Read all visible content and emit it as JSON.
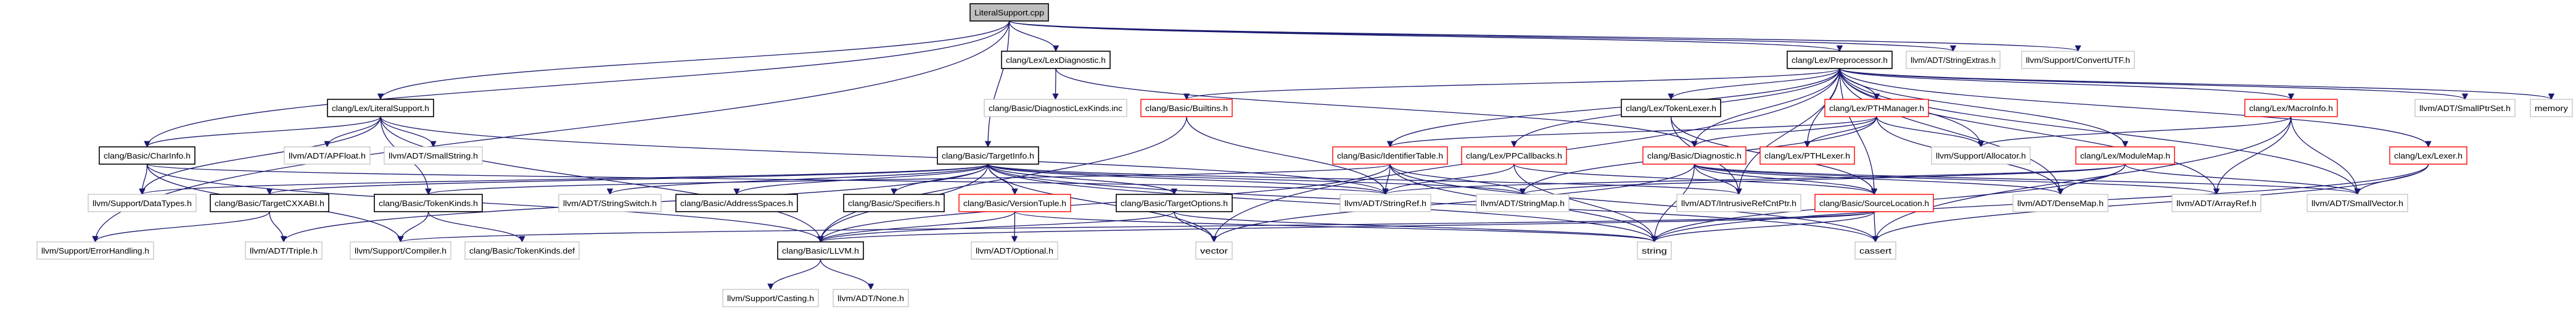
{
  "graph": {
    "colors": {
      "edge": "#191970",
      "root_fill": "#bfbfbf",
      "documented_border": "#000000",
      "undocumented_border": "#bfbfbf",
      "truncated_border": "#ff0000"
    },
    "nodes": [
      {
        "id": "cpp",
        "label": "LiteralSupport.cpp",
        "style": "root"
      },
      {
        "id": "litsup",
        "label": "clang/Lex/LiteralSupport.h",
        "style": "black"
      },
      {
        "id": "charinfo",
        "label": "clang/Basic/CharInfo.h",
        "style": "black"
      },
      {
        "id": "apfloat",
        "label": "llvm/ADT/APFloat.h",
        "style": "gray"
      },
      {
        "id": "smallstring",
        "label": "llvm/ADT/SmallString.h",
        "style": "gray"
      },
      {
        "id": "datatypes",
        "label": "llvm/Support/DataTypes.h",
        "style": "gray"
      },
      {
        "id": "cxxabi",
        "label": "clang/Basic/TargetCXXABI.h",
        "style": "black"
      },
      {
        "id": "tokenkinds",
        "label": "clang/Basic/TokenKinds.h",
        "style": "black"
      },
      {
        "id": "stringswitch",
        "label": "llvm/ADT/StringSwitch.h",
        "style": "gray"
      },
      {
        "id": "errorhandling",
        "label": "llvm/Support/ErrorHandling.h",
        "style": "gray"
      },
      {
        "id": "triple",
        "label": "llvm/ADT/Triple.h",
        "style": "gray"
      },
      {
        "id": "compiler",
        "label": "llvm/Support/Compiler.h",
        "style": "gray"
      },
      {
        "id": "tokenkindsdef",
        "label": "clang/Basic/TokenKinds.def",
        "style": "gray"
      },
      {
        "id": "lexdiag",
        "label": "clang/Lex/LexDiagnostic.h",
        "style": "black"
      },
      {
        "id": "diaglexkinds",
        "label": "clang/Basic/DiagnosticLexKinds.inc",
        "style": "gray"
      },
      {
        "id": "builtins",
        "label": "clang/Basic/Builtins.h",
        "style": "red"
      },
      {
        "id": "targetinfo",
        "label": "clang/Basic/TargetInfo.h",
        "style": "black"
      },
      {
        "id": "addrspaces",
        "label": "clang/Basic/AddressSpaces.h",
        "style": "black"
      },
      {
        "id": "specifiers",
        "label": "clang/Basic/Specifiers.h",
        "style": "black"
      },
      {
        "id": "versiontuple",
        "label": "clang/Basic/VersionTuple.h",
        "style": "red"
      },
      {
        "id": "targetoptions",
        "label": "clang/Basic/TargetOptions.h",
        "style": "black"
      },
      {
        "id": "llvmh",
        "label": "clang/Basic/LLVM.h",
        "style": "black"
      },
      {
        "id": "optional",
        "label": "llvm/ADT/Optional.h",
        "style": "gray"
      },
      {
        "id": "vector",
        "label": "vector",
        "style": "gray"
      },
      {
        "id": "casting",
        "label": "llvm/Support/Casting.h",
        "style": "gray"
      },
      {
        "id": "none",
        "label": "llvm/ADT/None.h",
        "style": "gray"
      },
      {
        "id": "preprocessor",
        "label": "clang/Lex/Preprocessor.h",
        "style": "black"
      },
      {
        "id": "stringextras",
        "label": "llvm/ADT/StringExtras.h",
        "style": "gray"
      },
      {
        "id": "convertutf",
        "label": "llvm/Support/ConvertUTF.h",
        "style": "gray"
      },
      {
        "id": "tokenlexer",
        "label": "clang/Lex/TokenLexer.h",
        "style": "black"
      },
      {
        "id": "pthmanager",
        "label": "clang/Lex/PTHManager.h",
        "style": "red"
      },
      {
        "id": "macroinfo",
        "label": "clang/Lex/MacroInfo.h",
        "style": "red"
      },
      {
        "id": "smallptrset",
        "label": "llvm/ADT/SmallPtrSet.h",
        "style": "gray"
      },
      {
        "id": "memory",
        "label": "memory",
        "style": "gray"
      },
      {
        "id": "identtable",
        "label": "clang/Basic/IdentifierTable.h",
        "style": "red"
      },
      {
        "id": "ppcallbacks",
        "label": "clang/Lex/PPCallbacks.h",
        "style": "red"
      },
      {
        "id": "diagnostic",
        "label": "clang/Basic/Diagnostic.h",
        "style": "red"
      },
      {
        "id": "pthlexer",
        "label": "clang/Lex/PTHLexer.h",
        "style": "red"
      },
      {
        "id": "allocator",
        "label": "llvm/Support/Allocator.h",
        "style": "gray"
      },
      {
        "id": "modulemap",
        "label": "clang/Lex/ModuleMap.h",
        "style": "red"
      },
      {
        "id": "lexer",
        "label": "clang/Lex/Lexer.h",
        "style": "red"
      },
      {
        "id": "stringref",
        "label": "llvm/ADT/StringRef.h",
        "style": "gray"
      },
      {
        "id": "stringmap",
        "label": "llvm/ADT/StringMap.h",
        "style": "gray"
      },
      {
        "id": "intrusive",
        "label": "llvm/ADT/IntrusiveRefCntPtr.h",
        "style": "gray"
      },
      {
        "id": "sourceloc",
        "label": "clang/Basic/SourceLocation.h",
        "style": "red"
      },
      {
        "id": "densemap",
        "label": "llvm/ADT/DenseMap.h",
        "style": "gray"
      },
      {
        "id": "arrayref",
        "label": "llvm/ADT/ArrayRef.h",
        "style": "gray"
      },
      {
        "id": "smallvector",
        "label": "llvm/ADT/SmallVector.h",
        "style": "gray"
      },
      {
        "id": "string",
        "label": "string",
        "style": "gray"
      },
      {
        "id": "cassert",
        "label": "cassert",
        "style": "gray"
      }
    ],
    "edges": [
      [
        "cpp",
        "litsup"
      ],
      [
        "cpp",
        "charinfo"
      ],
      [
        "cpp",
        "errorhandling"
      ],
      [
        "cpp",
        "lexdiag"
      ],
      [
        "cpp",
        "targetinfo"
      ],
      [
        "cpp",
        "preprocessor"
      ],
      [
        "cpp",
        "stringextras"
      ],
      [
        "cpp",
        "convertutf"
      ],
      [
        "litsup",
        "charinfo"
      ],
      [
        "litsup",
        "datatypes"
      ],
      [
        "litsup",
        "apfloat"
      ],
      [
        "litsup",
        "smallstring"
      ],
      [
        "litsup",
        "tokenkinds"
      ],
      [
        "litsup",
        "llvmh"
      ],
      [
        "litsup",
        "stringref"
      ],
      [
        "charinfo",
        "datatypes"
      ],
      [
        "charinfo",
        "compiler"
      ],
      [
        "charinfo",
        "llvmh"
      ],
      [
        "charinfo",
        "stringref"
      ],
      [
        "lexdiag",
        "diaglexkinds"
      ],
      [
        "lexdiag",
        "diagnostic"
      ],
      [
        "targetinfo",
        "stringswitch"
      ],
      [
        "targetinfo",
        "addrspaces"
      ],
      [
        "targetinfo",
        "specifiers"
      ],
      [
        "targetinfo",
        "versiontuple"
      ],
      [
        "targetinfo",
        "targetoptions"
      ],
      [
        "targetinfo",
        "llvmh"
      ],
      [
        "targetinfo",
        "vector"
      ],
      [
        "targetinfo",
        "string"
      ],
      [
        "targetinfo",
        "stringref"
      ],
      [
        "targetinfo",
        "stringmap"
      ],
      [
        "targetinfo",
        "intrusive"
      ],
      [
        "targetinfo",
        "cxxabi"
      ],
      [
        "targetinfo",
        "triple"
      ],
      [
        "targetinfo",
        "datatypes"
      ],
      [
        "targetinfo",
        "cassert"
      ],
      [
        "cxxabi",
        "errorhandling"
      ],
      [
        "cxxabi",
        "triple"
      ],
      [
        "tokenkinds",
        "compiler"
      ],
      [
        "tokenkinds",
        "tokenkindsdef"
      ],
      [
        "versiontuple",
        "llvmh"
      ],
      [
        "versiontuple",
        "optional"
      ],
      [
        "versiontuple",
        "string"
      ],
      [
        "targetoptions",
        "vector"
      ],
      [
        "targetoptions",
        "string"
      ],
      [
        "targetoptions",
        "llvmh"
      ],
      [
        "llvmh",
        "casting"
      ],
      [
        "llvmh",
        "none"
      ],
      [
        "builtins",
        "llvmh"
      ],
      [
        "builtins",
        "stringref"
      ],
      [
        "preprocessor",
        "builtins"
      ],
      [
        "preprocessor",
        "identtable"
      ],
      [
        "preprocessor",
        "ppcallbacks"
      ],
      [
        "preprocessor",
        "tokenlexer"
      ],
      [
        "preprocessor",
        "pthmanager"
      ],
      [
        "preprocessor",
        "diagnostic"
      ],
      [
        "preprocessor",
        "pthlexer"
      ],
      [
        "preprocessor",
        "sourceloc"
      ],
      [
        "preprocessor",
        "allocator"
      ],
      [
        "preprocessor",
        "modulemap"
      ],
      [
        "preprocessor",
        "macroinfo"
      ],
      [
        "preprocessor",
        "smallptrset"
      ],
      [
        "preprocessor",
        "memory"
      ],
      [
        "preprocessor",
        "lexer"
      ],
      [
        "preprocessor",
        "densemap"
      ],
      [
        "preprocessor",
        "arrayref"
      ],
      [
        "preprocessor",
        "smallvector"
      ],
      [
        "preprocessor",
        "intrusive"
      ],
      [
        "preprocessor",
        "vector"
      ],
      [
        "identtable",
        "stringref"
      ],
      [
        "identtable",
        "stringmap"
      ],
      [
        "identtable",
        "string"
      ],
      [
        "identtable",
        "cassert"
      ],
      [
        "identtable",
        "llvmh"
      ],
      [
        "identtable",
        "tokenkinds"
      ],
      [
        "ppcallbacks",
        "stringref"
      ],
      [
        "ppcallbacks",
        "string"
      ],
      [
        "ppcallbacks",
        "sourceloc"
      ],
      [
        "tokenlexer",
        "sourceloc"
      ],
      [
        "tokenlexer",
        "intrusive"
      ],
      [
        "pthmanager",
        "identtable"
      ],
      [
        "pthmanager",
        "diagnostic"
      ],
      [
        "pthmanager",
        "pthlexer"
      ],
      [
        "pthmanager",
        "allocator"
      ],
      [
        "pthmanager",
        "densemap"
      ],
      [
        "pthmanager",
        "stringmap"
      ],
      [
        "diagnostic",
        "intrusive"
      ],
      [
        "diagnostic",
        "sourceloc"
      ],
      [
        "diagnostic",
        "densemap"
      ],
      [
        "diagnostic",
        "arrayref"
      ],
      [
        "diagnostic",
        "smallvector"
      ],
      [
        "diagnostic",
        "string"
      ],
      [
        "diagnostic",
        "vector"
      ],
      [
        "sourceloc",
        "string"
      ],
      [
        "sourceloc",
        "cassert"
      ],
      [
        "sourceloc",
        "llvmh"
      ],
      [
        "sourceloc",
        "compiler"
      ],
      [
        "macroinfo",
        "allocator"
      ],
      [
        "macroinfo",
        "arrayref"
      ],
      [
        "macroinfo",
        "smallvector"
      ],
      [
        "macroinfo",
        "cassert"
      ],
      [
        "modulemap",
        "densemap"
      ],
      [
        "modulemap",
        "smallvector"
      ],
      [
        "modulemap",
        "stringref"
      ],
      [
        "modulemap",
        "stringmap"
      ],
      [
        "modulemap",
        "string"
      ],
      [
        "lexer",
        "smallvector"
      ],
      [
        "lexer",
        "cassert"
      ],
      [
        "lexer",
        "string"
      ]
    ]
  }
}
